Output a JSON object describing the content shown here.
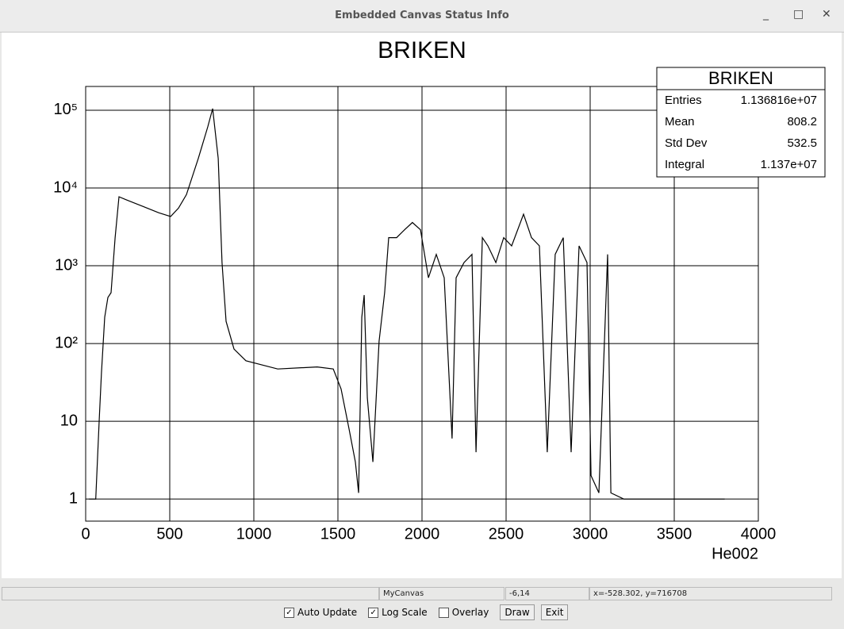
{
  "window": {
    "title": "Embedded Canvas Status Info",
    "status": [
      "MyCanvas",
      "-6,14",
      "x=-528.302, y=716708"
    ]
  },
  "controls": {
    "checkboxes": [
      {
        "label": "Auto Update",
        "checked": true
      },
      {
        "label": "Log Scale",
        "checked": true
      },
      {
        "label": "Overlay",
        "checked": false
      }
    ],
    "buttons": [
      "Draw",
      "Exit"
    ]
  },
  "chart_data": {
    "type": "line",
    "title": "BRIKEN",
    "x_label": "He002",
    "x": [
      20,
      60,
      80,
      94,
      113,
      132,
      151,
      175,
      198,
      245,
      340,
      434,
      505,
      552,
      599,
      670,
      726,
      755,
      788,
      811,
      835,
      882,
      953,
      1142,
      1377,
      1472,
      1519,
      1566,
      1604,
      1623,
      1642,
      1656,
      1675,
      1708,
      1745,
      1778,
      1802,
      1849,
      1896,
      1943,
      1991,
      2038,
      2085,
      2132,
      2179,
      2203,
      2250,
      2297,
      2321,
      2359,
      2392,
      2439,
      2486,
      2533,
      2604,
      2651,
      2698,
      2745,
      2792,
      2840,
      2887,
      2934,
      2981,
      3005,
      3052,
      3104,
      3123,
      3200,
      3400,
      3600,
      3800
    ],
    "values": [
      1,
      1,
      10,
      42,
      218,
      390,
      450,
      2280,
      7700,
      7000,
      5800,
      4800,
      4300,
      5500,
      8200,
      24000,
      61000,
      105000,
      24000,
      1100,
      193,
      85,
      60,
      47,
      50,
      47,
      26,
      8,
      3,
      1.2,
      218,
      420,
      20,
      3,
      107,
      450,
      2300,
      2300,
      2900,
      3600,
      2900,
      700,
      1400,
      700,
      6,
      700,
      1100,
      1400,
      4,
      2300,
      1800,
      1100,
      2300,
      1800,
      4600,
      2300,
      1800,
      4,
      1400,
      2300,
      4,
      1800,
      1100,
      2,
      1.2,
      1400,
      1.2,
      1,
      1,
      1,
      1
    ],
    "color": "#000000",
    "xlim": [
      0,
      4000
    ],
    "ylim": [
      0.52,
      202000
    ],
    "log_y": true,
    "grid": true,
    "xticks": [
      0,
      500,
      1000,
      1500,
      2000,
      2500,
      3000,
      3500,
      4000
    ],
    "yticks": [
      1,
      10,
      {
        "value": 100,
        "label": "10²"
      },
      {
        "value": 1000,
        "label": "10³"
      },
      {
        "value": 10000,
        "label": "10⁴"
      },
      {
        "value": 100000,
        "label": "10⁵"
      }
    ],
    "stats": {
      "title": "BRIKEN",
      "rows": [
        [
          "Entries",
          "1.136816e+07"
        ],
        [
          "Mean",
          808.2
        ],
        [
          "Std Dev",
          532.5
        ],
        [
          "Integral",
          "1.137e+07"
        ]
      ]
    }
  }
}
